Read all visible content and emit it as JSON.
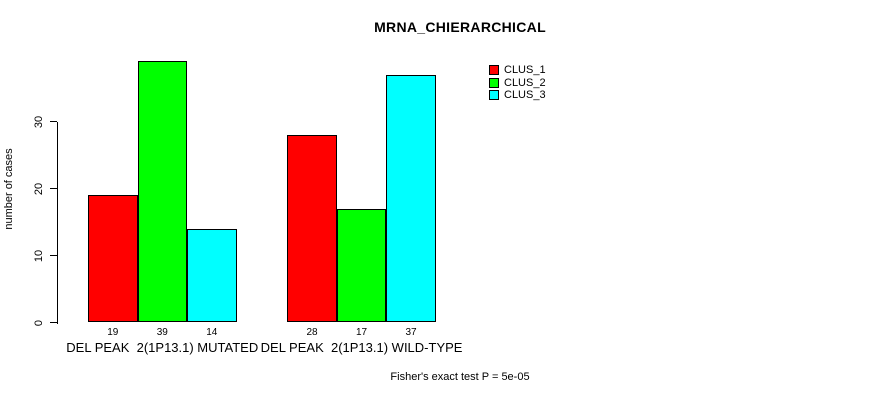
{
  "chart_data": {
    "type": "bar",
    "title": "MRNA_CHIERARCHICAL",
    "ylabel": "number of cases",
    "xlabel": "",
    "categories": [
      "DEL PEAK  2(1P13.1) MUTATED",
      "DEL PEAK  2(1P13.1) WILD-TYPE"
    ],
    "series": [
      {
        "name": "CLUS_1",
        "color": "#ff0000",
        "values": [
          19,
          28
        ]
      },
      {
        "name": "CLUS_2",
        "color": "#00ff00",
        "values": [
          39,
          17
        ]
      },
      {
        "name": "CLUS_3",
        "color": "#00ffff",
        "values": [
          14,
          37
        ]
      }
    ],
    "bar_value_labels": [
      [
        19,
        39,
        14
      ],
      [
        28,
        17,
        37
      ]
    ],
    "yticks": [
      0,
      10,
      20,
      30
    ],
    "ylim": [
      0,
      40
    ],
    "grid": false,
    "legend_position": "top-right",
    "annotation": "Fisher's exact test P = 5e-05",
    "colors": {
      "axis": "#000000",
      "bar_border": "#000000",
      "background": "#ffffff"
    }
  }
}
